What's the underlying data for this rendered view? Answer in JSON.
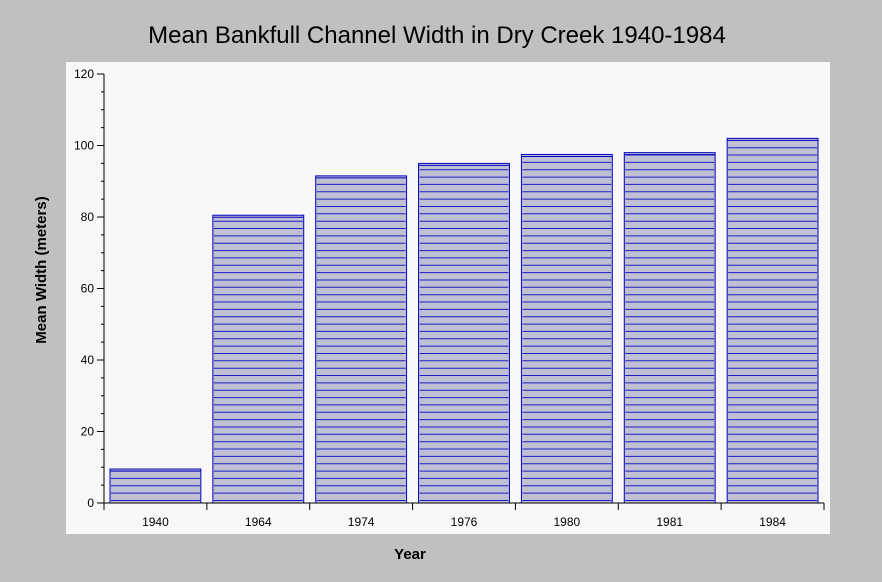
{
  "chart_data": {
    "type": "bar",
    "title": "Mean Bankfull Channel Width in Dry Creek 1940-1984",
    "xlabel": "Year",
    "ylabel": "Mean Width (meters)",
    "categories": [
      "1940",
      "1964",
      "1974",
      "1976",
      "1980",
      "1981",
      "1984"
    ],
    "values": [
      9.5,
      80.5,
      91.5,
      95,
      97.5,
      98,
      102
    ],
    "ylim": [
      0,
      120
    ],
    "yticks": [
      0,
      20,
      40,
      60,
      80,
      100,
      120
    ],
    "grid": false,
    "legend": "none",
    "colors": {
      "background": "#c0c0c0",
      "plot_area": "#f8f8f8",
      "bar_fill": "#c0c0d4",
      "bar_stroke": "#0000c0",
      "hatch": "#0000c0",
      "axis": "#000000"
    }
  }
}
